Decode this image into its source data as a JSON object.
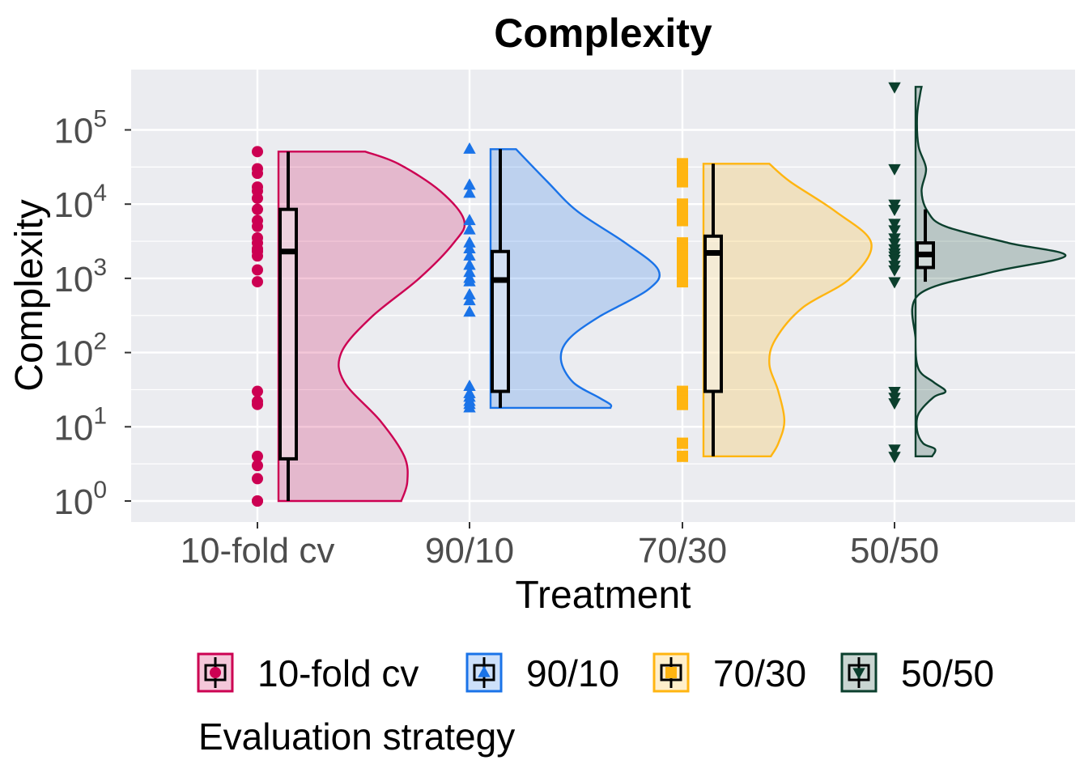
{
  "chart_data": {
    "type": "raincloud",
    "title": "Complexity",
    "xlabel": "Treatment",
    "ylabel": "Complexity",
    "y_scale": "log10",
    "ylim": [
      0.56,
      70000
    ],
    "y_ticks": [
      {
        "value": 1,
        "base": "10",
        "exp": "0"
      },
      {
        "value": 10,
        "base": "10",
        "exp": "1"
      },
      {
        "value": 100,
        "base": "10",
        "exp": "2"
      },
      {
        "value": 1000,
        "base": "10",
        "exp": "3"
      },
      {
        "value": 10000,
        "base": "10",
        "exp": "4"
      },
      {
        "value": 100000,
        "base": "10",
        "exp": "5"
      }
    ],
    "categories": [
      "10-fold cv",
      "90/10",
      "70/30",
      "50/50"
    ],
    "grid": true,
    "legend_position": "bottom",
    "legend_title": "Evaluation strategy",
    "series": [
      {
        "name": "10-fold cv",
        "color": "#CC0052",
        "marker": "circle",
        "points": [
          51000,
          30000,
          26000,
          17000,
          15000,
          12000,
          8500,
          6000,
          5000,
          3500,
          3000,
          2500,
          2300,
          2000,
          1300,
          900,
          30,
          22,
          20,
          4,
          3,
          2,
          1,
          1
        ],
        "box": {
          "min": 1,
          "q1": 3.7,
          "median": 2300,
          "q3": 8500,
          "max": 51000
        },
        "density": [
          [
            1,
            0.82
          ],
          [
            1.8,
            0.86
          ],
          [
            4,
            0.84
          ],
          [
            12,
            0.68
          ],
          [
            40,
            0.44
          ],
          [
            100,
            0.42
          ],
          [
            300,
            0.62
          ],
          [
            1000,
            0.94
          ],
          [
            3000,
            1.17
          ],
          [
            6000,
            1.24
          ],
          [
            15000,
            1.08
          ],
          [
            35000,
            0.8
          ],
          [
            51000,
            0.58
          ]
        ]
      },
      {
        "name": "90/10",
        "color": "#1A73E8",
        "marker": "triangle-up",
        "points": [
          55000,
          18000,
          14000,
          6000,
          4500,
          3000,
          2500,
          2000,
          1500,
          1200,
          1000,
          900,
          600,
          500,
          350,
          35,
          28,
          25,
          22,
          20,
          18
        ],
        "box": {
          "min": 18,
          "q1": 30,
          "median": 950,
          "q3": 2300,
          "max": 55000
        },
        "density": [
          [
            18,
            0.8
          ],
          [
            20,
            0.8
          ],
          [
            25,
            0.72
          ],
          [
            40,
            0.55
          ],
          [
            80,
            0.47
          ],
          [
            150,
            0.52
          ],
          [
            300,
            0.72
          ],
          [
            700,
            1.05
          ],
          [
            1300,
            1.12
          ],
          [
            3000,
            0.9
          ],
          [
            8000,
            0.58
          ],
          [
            20000,
            0.38
          ],
          [
            55000,
            0.17
          ]
        ]
      },
      {
        "name": "70/30",
        "color": "#FFB511",
        "marker": "square",
        "points": [
          35000,
          30000,
          25000,
          20000,
          10000,
          8000,
          6000,
          3000,
          2500,
          2000,
          1800,
          1500,
          1200,
          900,
          30,
          25,
          22,
          20,
          6,
          4
        ],
        "box": {
          "min": 4,
          "q1": 30,
          "median": 2200,
          "q3": 3700,
          "max": 35000
        },
        "density": [
          [
            4,
            0.45
          ],
          [
            6,
            0.5
          ],
          [
            12,
            0.54
          ],
          [
            30,
            0.5
          ],
          [
            70,
            0.44
          ],
          [
            150,
            0.48
          ],
          [
            400,
            0.66
          ],
          [
            1000,
            0.98
          ],
          [
            3000,
            1.12
          ],
          [
            8000,
            0.88
          ],
          [
            20000,
            0.58
          ],
          [
            35000,
            0.44
          ]
        ]
      },
      {
        "name": "50/50",
        "color": "#0B3F2D",
        "marker": "triangle-down",
        "points": [
          380000,
          30000,
          10000,
          8500,
          5500,
          4500,
          3500,
          3000,
          2500,
          2200,
          2000,
          1800,
          1500,
          1300,
          900,
          30,
          25,
          21,
          5,
          4
        ],
        "box": {
          "min": 900,
          "q1": 1400,
          "median": 2100,
          "q3": 3000,
          "max": 8500
        },
        "density": [
          [
            4,
            0.11
          ],
          [
            5,
            0.13
          ],
          [
            6,
            0.05
          ],
          [
            9,
            0.01
          ],
          [
            15,
            0.02
          ],
          [
            25,
            0.12
          ],
          [
            30,
            0.2
          ],
          [
            40,
            0.12
          ],
          [
            60,
            0.02
          ],
          [
            150,
            0.0
          ],
          [
            600,
            0.02
          ],
          [
            1200,
            0.5
          ],
          [
            2000,
            1.0
          ],
          [
            3000,
            0.62
          ],
          [
            5000,
            0.2
          ],
          [
            8000,
            0.08
          ],
          [
            15000,
            0.04
          ],
          [
            30000,
            0.07
          ],
          [
            60000,
            0.02
          ],
          [
            150000,
            0.01
          ],
          [
            300000,
            0.03
          ],
          [
            380000,
            0.04
          ]
        ]
      }
    ]
  }
}
